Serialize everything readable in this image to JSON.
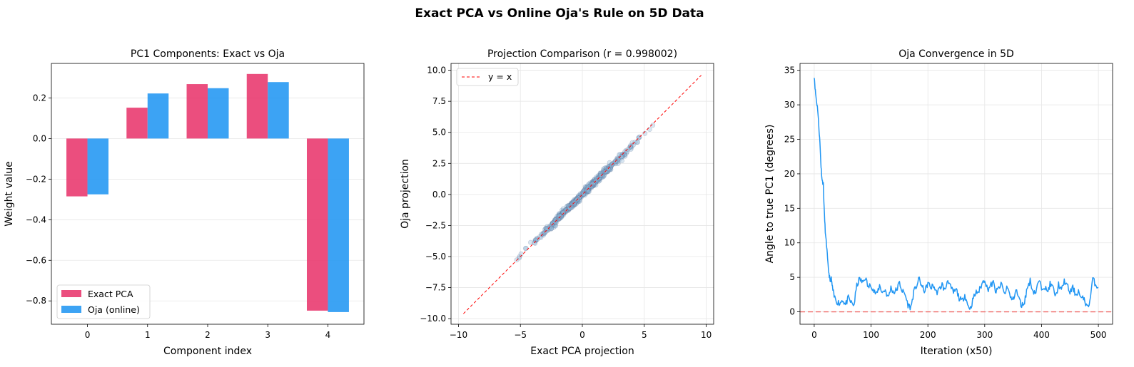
{
  "figure": {
    "suptitle": "Exact PCA vs Online Oja's Rule on 5D Data"
  },
  "colors": {
    "exact": "#E8356C",
    "oja": "#2196F3",
    "diag": "#FF0000",
    "scatter_fill": "#90B8D8",
    "scatter_edge": "#3A4F7A",
    "zero_line": "#EF5350",
    "grid": "#E6E6E6"
  },
  "chart_data": [
    {
      "type": "bar",
      "title": "PC1 Components: Exact vs Oja",
      "xlabel": "Component index",
      "ylabel": "Weight value",
      "categories": [
        "0",
        "1",
        "2",
        "3",
        "4"
      ],
      "series": [
        {
          "name": "Exact PCA",
          "values": [
            -0.285,
            0.152,
            0.268,
            0.318,
            -0.848
          ]
        },
        {
          "name": "Oja (online)",
          "values": [
            -0.275,
            0.222,
            0.248,
            0.278,
            -0.855
          ]
        }
      ],
      "ylim": [
        -0.915,
        0.37
      ],
      "yticks": [
        -0.8,
        -0.6,
        -0.4,
        -0.2,
        0.0,
        0.2
      ],
      "ytick_labels": [
        "−0.8",
        "−0.6",
        "−0.4",
        "−0.2",
        "0.0",
        "0.2"
      ],
      "grid": "y",
      "legend": "lower-left"
    },
    {
      "type": "scatter",
      "title": "Projection Comparison (r = 0.998002)",
      "xlabel": "Exact PCA projection",
      "ylabel": "Oja projection",
      "xlim": [
        -10.6,
        10.6
      ],
      "ylim": [
        -10.45,
        10.55
      ],
      "xticks": [
        -10,
        -5,
        0,
        5,
        10
      ],
      "xtick_labels": [
        "−10",
        "−5",
        "0",
        "5",
        "10"
      ],
      "yticks": [
        -10,
        -7.5,
        -5,
        -2.5,
        0,
        2.5,
        5,
        7.5,
        10
      ],
      "ytick_labels": [
        "−10.0",
        "−7.5",
        "−5.0",
        "−2.5",
        "0.0",
        "2.5",
        "5.0",
        "7.5",
        "10.0"
      ],
      "points_x_range": [
        -6.2,
        5.8
      ],
      "series": [
        {
          "name": "y = x",
          "line": [
            [
              -9.6,
              -9.6
            ],
            [
              9.6,
              9.6
            ]
          ]
        }
      ],
      "grid": true,
      "legend": "top-left"
    },
    {
      "type": "line",
      "title": "Oja Convergence in 5D",
      "xlabel": "Iteration (x50)",
      "ylabel": "Angle to true PC1 (degrees)",
      "xlim": [
        -25,
        525
      ],
      "ylim": [
        -1.8,
        36
      ],
      "xticks": [
        0,
        100,
        200,
        300,
        400,
        500
      ],
      "yticks": [
        0,
        5,
        10,
        15,
        20,
        25,
        30,
        35
      ],
      "x": [
        0,
        2,
        4,
        6,
        8,
        10,
        12,
        14,
        16,
        18,
        20,
        22,
        24,
        26,
        28,
        30,
        32,
        35,
        40,
        45,
        50,
        55,
        60,
        65,
        70,
        75,
        80,
        85,
        90,
        95,
        100,
        105,
        110,
        115,
        120,
        125,
        130,
        135,
        140,
        145,
        150,
        155,
        160,
        165,
        170,
        175,
        180,
        185,
        190,
        195,
        200,
        205,
        210,
        215,
        220,
        225,
        230,
        235,
        240,
        245,
        250,
        255,
        260,
        265,
        270,
        275,
        280,
        285,
        290,
        295,
        300,
        305,
        310,
        315,
        320,
        325,
        330,
        335,
        340,
        345,
        350,
        355,
        360,
        365,
        370,
        375,
        380,
        385,
        390,
        395,
        400,
        405,
        410,
        415,
        420,
        425,
        430,
        435,
        440,
        445,
        450,
        455,
        460,
        465,
        470,
        475,
        480,
        485,
        490,
        495,
        500
      ],
      "series": [
        {
          "name": "",
          "values": [
            34.2,
            32.0,
            30.5,
            29.5,
            27.0,
            24.5,
            21.0,
            19.0,
            18.5,
            14.0,
            11.0,
            9.5,
            7.0,
            5.5,
            4.5,
            4.8,
            3.5,
            2.2,
            1.5,
            1.2,
            1.8,
            1.0,
            2.0,
            1.3,
            1.0,
            3.8,
            4.8,
            4.2,
            5.0,
            3.5,
            4.0,
            3.0,
            2.5,
            3.8,
            2.8,
            3.2,
            2.0,
            3.5,
            2.8,
            3.2,
            4.2,
            3.0,
            2.5,
            1.0,
            0.6,
            2.8,
            3.8,
            4.8,
            3.5,
            3.0,
            4.2,
            3.5,
            3.8,
            2.8,
            3.2,
            4.0,
            3.0,
            4.8,
            3.5,
            2.8,
            3.2,
            2.0,
            1.5,
            2.5,
            1.0,
            0.5,
            2.0,
            2.8,
            3.0,
            4.0,
            4.8,
            3.2,
            3.8,
            4.2,
            2.8,
            3.5,
            4.0,
            2.5,
            3.8,
            2.0,
            1.8,
            3.2,
            2.0,
            0.8,
            1.5,
            3.5,
            4.5,
            3.0,
            2.8,
            4.5,
            3.5,
            3.8,
            2.8,
            4.0,
            3.5,
            2.2,
            4.0,
            3.0,
            4.5,
            3.8,
            2.8,
            3.5,
            2.5,
            3.0,
            1.8,
            2.0,
            0.6,
            1.5,
            4.8,
            4.0,
            3.5
          ]
        }
      ],
      "hline": 0,
      "grid": true
    }
  ]
}
